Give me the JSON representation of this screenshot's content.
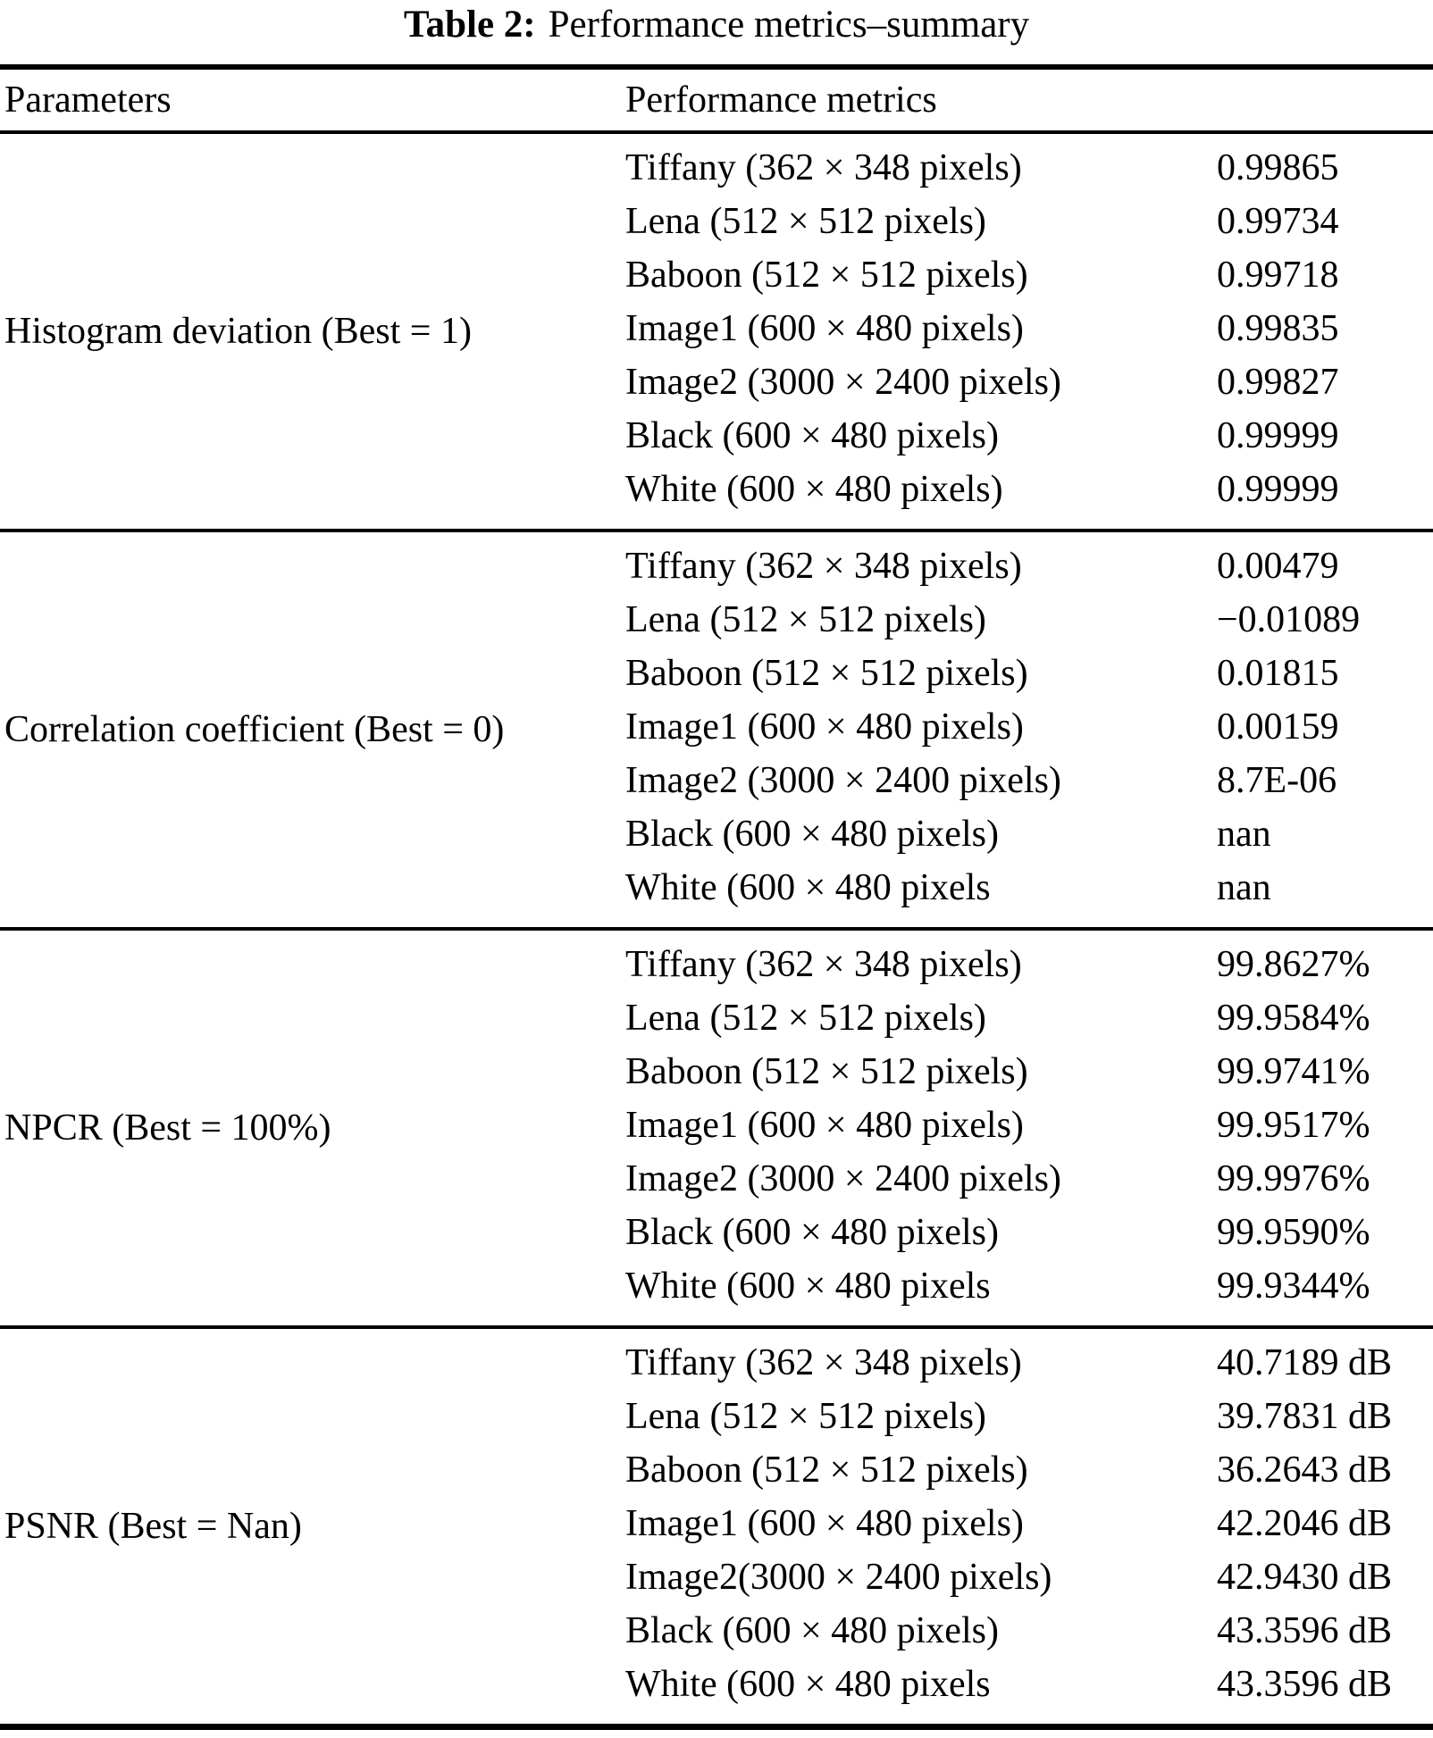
{
  "title": {
    "prefix": "Table 2:",
    "text": "Performance metrics–summary"
  },
  "header": {
    "parameters": "Parameters",
    "metrics": "Performance metrics"
  },
  "blocks": [
    {
      "parameter": "Histogram deviation (Best = 1)",
      "rows": [
        {
          "label": "Tiffany (362 × 348 pixels)",
          "value": "0.99865"
        },
        {
          "label": "Lena (512 × 512 pixels)",
          "value": "0.99734"
        },
        {
          "label": "Baboon (512 × 512 pixels)",
          "value": "0.99718"
        },
        {
          "label": "Image1 (600 × 480 pixels)",
          "value": "0.99835"
        },
        {
          "label": "Image2 (3000 × 2400 pixels)",
          "value": "0.99827"
        },
        {
          "label": "Black (600 × 480 pixels)",
          "value": "0.99999"
        },
        {
          "label": "White (600 × 480 pixels)",
          "value": "0.99999"
        }
      ]
    },
    {
      "parameter": "Correlation coefficient (Best = 0)",
      "rows": [
        {
          "label": "Tiffany (362 × 348 pixels)",
          "value": "0.00479"
        },
        {
          "label": "Lena (512 × 512 pixels)",
          "value": "−0.01089"
        },
        {
          "label": "Baboon (512 × 512 pixels)",
          "value": "0.01815"
        },
        {
          "label": "Image1 (600 × 480 pixels)",
          "value": "0.00159"
        },
        {
          "label": "Image2 (3000 × 2400 pixels)",
          "value": "8.7E-06"
        },
        {
          "label": "Black (600 × 480 pixels)",
          "value": "nan"
        },
        {
          "label": "White (600 × 480 pixels",
          "value": "nan"
        }
      ]
    },
    {
      "parameter": "NPCR (Best = 100%)",
      "rows": [
        {
          "label": "Tiffany (362 × 348 pixels)",
          "value": "99.8627%"
        },
        {
          "label": "Lena (512 × 512 pixels)",
          "value": "99.9584%"
        },
        {
          "label": "Baboon (512 × 512 pixels)",
          "value": "99.9741%"
        },
        {
          "label": "Image1 (600 × 480 pixels)",
          "value": "99.9517%"
        },
        {
          "label": "Image2 (3000 × 2400 pixels)",
          "value": "99.9976%"
        },
        {
          "label": "Black (600 × 480 pixels)",
          "value": "99.9590%"
        },
        {
          "label": "White (600 × 480 pixels",
          "value": "99.9344%"
        }
      ]
    },
    {
      "parameter": "PSNR (Best = Nan)",
      "rows": [
        {
          "label": "Tiffany (362 × 348 pixels)",
          "value": "40.7189 dB"
        },
        {
          "label": "Lena (512 × 512 pixels)",
          "value": "39.7831 dB"
        },
        {
          "label": "Baboon (512 × 512 pixels)",
          "value": "36.2643 dB"
        },
        {
          "label": "Image1 (600 × 480 pixels)",
          "value": "42.2046 dB"
        },
        {
          "label": "Image2(3000 × 2400 pixels)",
          "value": "42.9430 dB"
        },
        {
          "label": "Black (600 × 480 pixels)",
          "value": "43.3596 dB"
        },
        {
          "label": "White (600 × 480 pixels",
          "value": "43.3596 dB"
        }
      ]
    }
  ]
}
